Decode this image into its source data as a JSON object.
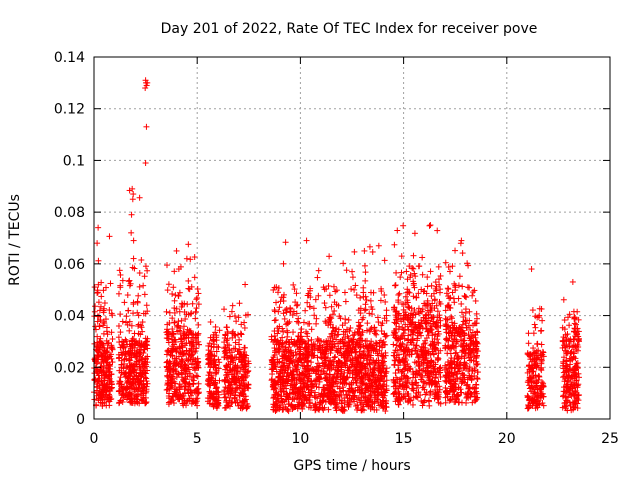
{
  "chart_data": {
    "type": "scatter",
    "title": "Day 201 of 2022, Rate Of TEC Index for receiver pove",
    "xlabel": "GPS time / hours",
    "ylabel": "ROTI / TECUs",
    "xlim": [
      0,
      25
    ],
    "ylim": [
      0,
      0.14
    ],
    "xticks": [
      0,
      5,
      10,
      15,
      20,
      25
    ],
    "xtick_labels": [
      "0",
      "5",
      "10",
      "15",
      "20",
      "25"
    ],
    "yticks": [
      0,
      0.02,
      0.04,
      0.06,
      0.08,
      0.1,
      0.12,
      0.14
    ],
    "ytick_labels": [
      "0",
      "0.02",
      "0.04",
      "0.06",
      "0.08",
      "0.1",
      "0.12",
      "0.14"
    ],
    "grid": true,
    "marker": "plus",
    "series_color": "#ff0000",
    "clusters": [
      {
        "x_start": 0.0,
        "x_end": 0.9,
        "y_base": 0.005,
        "y_typ": 0.028,
        "y_peak": 0.075,
        "count": 260
      },
      {
        "x_start": 1.2,
        "x_end": 2.6,
        "y_base": 0.006,
        "y_typ": 0.03,
        "y_peak": 0.089,
        "count": 380
      },
      {
        "x_start": 3.5,
        "x_end": 5.1,
        "y_base": 0.005,
        "y_typ": 0.033,
        "y_peak": 0.068,
        "count": 400
      },
      {
        "x_start": 5.5,
        "x_end": 6.1,
        "y_base": 0.004,
        "y_typ": 0.025,
        "y_peak": 0.04,
        "count": 140
      },
      {
        "x_start": 6.3,
        "x_end": 7.5,
        "y_base": 0.004,
        "y_typ": 0.025,
        "y_peak": 0.053,
        "count": 280
      },
      {
        "x_start": 8.6,
        "x_end": 14.2,
        "y_base": 0.003,
        "y_typ": 0.03,
        "y_peak": 0.069,
        "count": 1500
      },
      {
        "x_start": 14.5,
        "x_end": 16.8,
        "y_base": 0.005,
        "y_typ": 0.04,
        "y_peak": 0.075,
        "count": 620
      },
      {
        "x_start": 17.0,
        "x_end": 18.6,
        "y_base": 0.006,
        "y_typ": 0.035,
        "y_peak": 0.069,
        "count": 420
      },
      {
        "x_start": 21.0,
        "x_end": 21.8,
        "y_base": 0.004,
        "y_typ": 0.025,
        "y_peak": 0.058,
        "count": 180
      },
      {
        "x_start": 22.7,
        "x_end": 23.5,
        "y_base": 0.003,
        "y_typ": 0.03,
        "y_peak": 0.053,
        "count": 220
      }
    ],
    "notable_points": [
      {
        "x": 2.5,
        "y": 0.131
      },
      {
        "x": 2.52,
        "y": 0.13
      },
      {
        "x": 2.55,
        "y": 0.129
      },
      {
        "x": 2.48,
        "y": 0.128
      },
      {
        "x": 2.58,
        "y": 0.13
      },
      {
        "x": 2.54,
        "y": 0.113
      },
      {
        "x": 2.5,
        "y": 0.099
      },
      {
        "x": 1.85,
        "y": 0.089
      },
      {
        "x": 1.9,
        "y": 0.087
      },
      {
        "x": 1.88,
        "y": 0.085
      },
      {
        "x": 1.82,
        "y": 0.079
      },
      {
        "x": 1.8,
        "y": 0.072
      },
      {
        "x": 1.92,
        "y": 0.069
      },
      {
        "x": 0.2,
        "y": 0.074
      },
      {
        "x": 0.15,
        "y": 0.068
      },
      {
        "x": 4.0,
        "y": 0.065
      },
      {
        "x": 4.5,
        "y": 0.062
      },
      {
        "x": 10.3,
        "y": 0.069
      },
      {
        "x": 16.3,
        "y": 0.075
      },
      {
        "x": 17.8,
        "y": 0.069
      },
      {
        "x": 21.2,
        "y": 0.058
      },
      {
        "x": 23.2,
        "y": 0.053
      },
      {
        "x": 13.8,
        "y": 0.067
      },
      {
        "x": 13.1,
        "y": 0.065
      }
    ]
  }
}
